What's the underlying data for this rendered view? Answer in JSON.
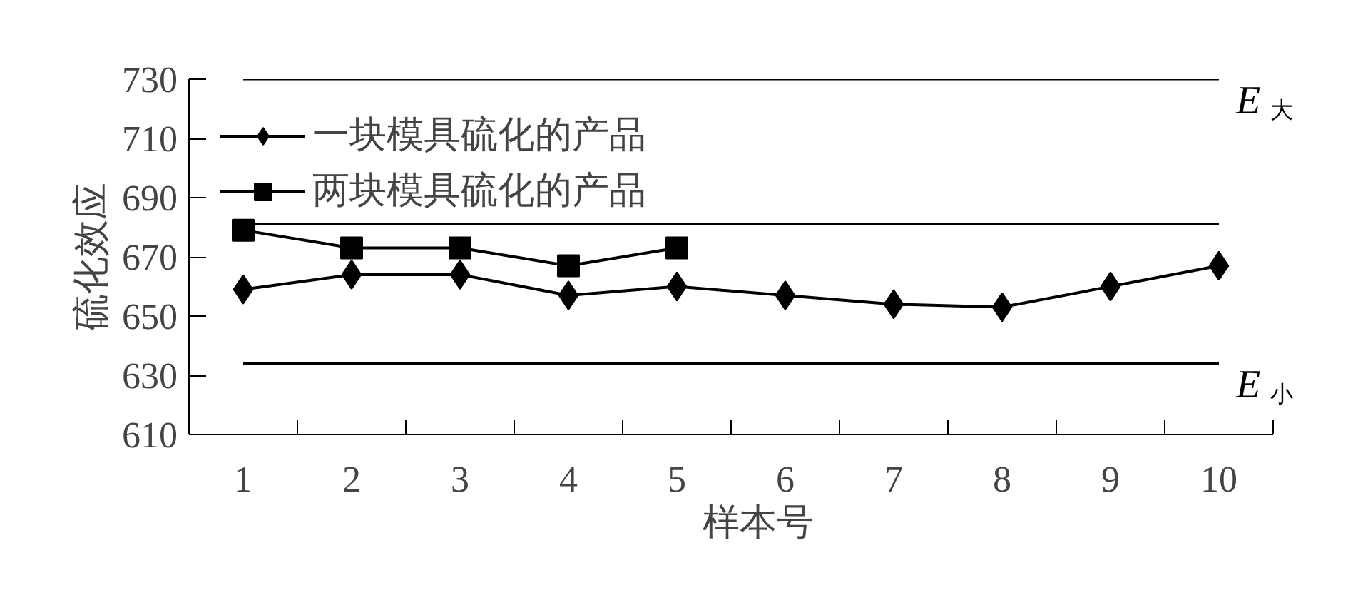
{
  "chart_data": {
    "type": "line",
    "xlabel": "样本号",
    "ylabel": "硫化效应",
    "categories": [
      "1",
      "2",
      "3",
      "4",
      "5",
      "6",
      "7",
      "8",
      "9",
      "10"
    ],
    "series": [
      {
        "name": "一块模具硫化的产品",
        "color": "#000000",
        "marker": "diamond",
        "values": [
          659,
          664,
          664,
          657,
          660,
          657,
          654,
          653,
          660,
          667
        ]
      },
      {
        "name": "两块模具硫化的产品",
        "color": "#000000",
        "marker": "square",
        "values": [
          679,
          673,
          673,
          667,
          673,
          null,
          null,
          null,
          null,
          null
        ]
      }
    ],
    "ylim": [
      610,
      730
    ],
    "yticks": [
      610,
      630,
      650,
      670,
      690,
      710,
      730
    ],
    "ref_lines": [
      {
        "axis": "y",
        "value": 730,
        "label": "E$_{大}$",
        "color": "#000000"
      },
      {
        "axis": "y",
        "value": 681,
        "label": null,
        "color": "#000000"
      },
      {
        "axis": "y",
        "value": 634,
        "label": "E$_{小}$",
        "color": "#000000"
      }
    ],
    "grid": false,
    "legend": "top left",
    "line_style": "solid"
  }
}
